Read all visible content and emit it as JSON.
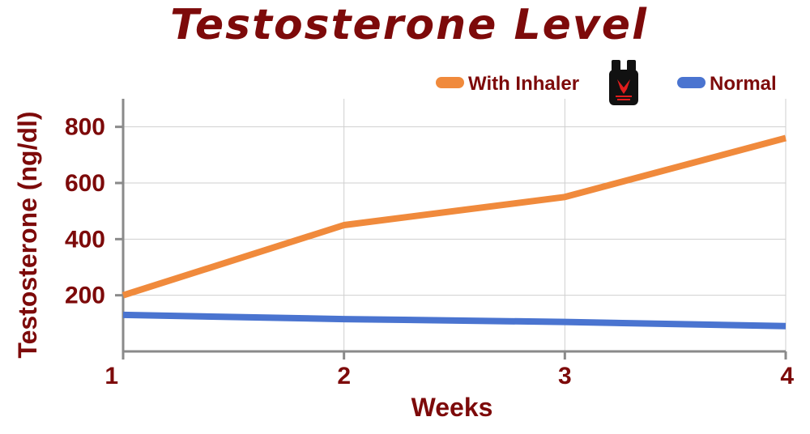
{
  "chart_data": {
    "type": "line",
    "title": "Testosterone Level",
    "xlabel": "Weeks",
    "ylabel": "Testosterone (ng/dl)",
    "x": [
      1,
      2,
      3,
      4
    ],
    "x_ticks": [
      "1",
      "2",
      "3",
      "4"
    ],
    "y_ticks": [
      "200",
      "400",
      "600",
      "800"
    ],
    "xlim": [
      1,
      4
    ],
    "ylim": [
      0,
      900
    ],
    "grid": true,
    "legend_position": "top-right",
    "series": [
      {
        "name": "With Inhaler",
        "values": [
          200,
          450,
          550,
          760
        ],
        "color": "#f08a3c"
      },
      {
        "name": "Normal",
        "values": [
          130,
          115,
          105,
          90
        ],
        "color": "#4a74d0"
      }
    ]
  },
  "legend": {
    "product_icon": "inhaler-product-icon"
  }
}
